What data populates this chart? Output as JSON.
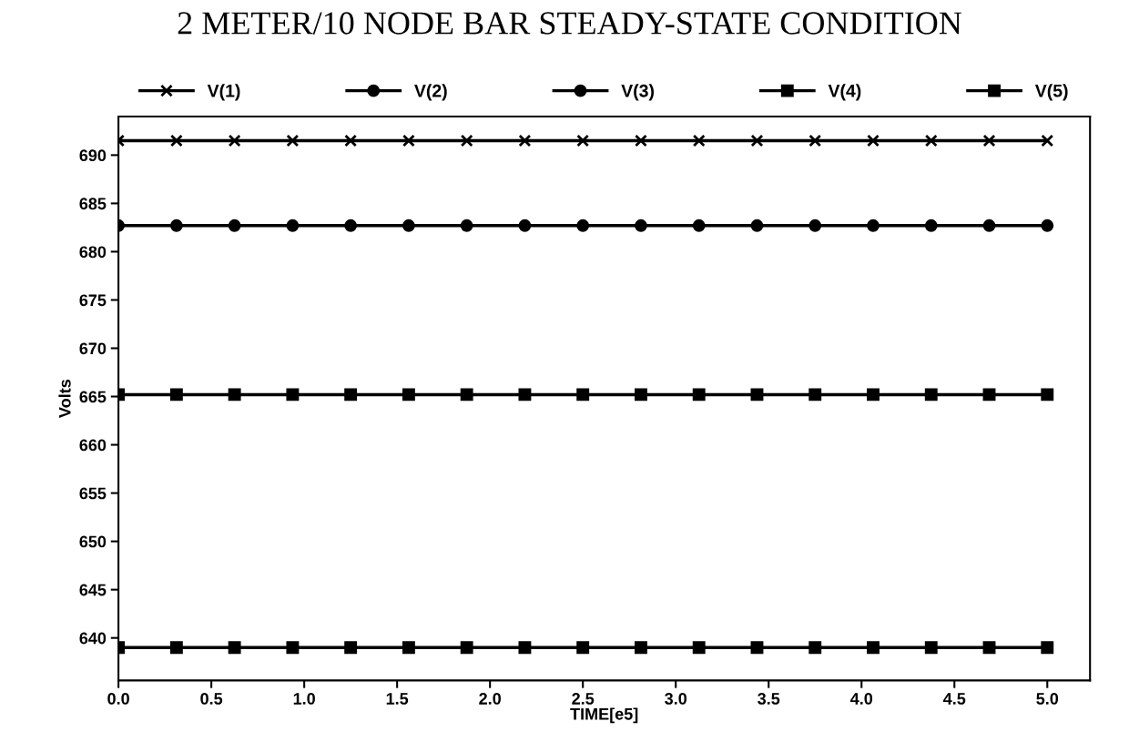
{
  "chart_data": {
    "type": "line",
    "title": "2 METER/10 NODE BAR STEADY-STATE CONDITION",
    "xlabel": "TIME[e5]",
    "ylabel": "Volts",
    "x": [
      0,
      0.3125,
      0.625,
      0.9375,
      1.25,
      1.5625,
      1.875,
      2.1875,
      2.5,
      2.8125,
      3.125,
      3.4375,
      3.75,
      4.0625,
      4.375,
      4.6875,
      5.0
    ],
    "series": [
      {
        "name": "V(1)",
        "color": "#000000",
        "marker": "cross",
        "values": [
          691.5,
          691.5,
          691.5,
          691.5,
          691.5,
          691.5,
          691.5,
          691.5,
          691.5,
          691.5,
          691.5,
          691.5,
          691.5,
          691.5,
          691.5,
          691.5,
          691.5
        ]
      },
      {
        "name": "V(2)",
        "color": "#000000",
        "marker": "circle",
        "values": [
          null,
          null,
          null,
          null,
          null,
          null,
          null,
          null,
          null,
          null,
          null,
          null,
          null,
          null,
          null,
          null,
          null
        ]
      },
      {
        "name": "V(3)",
        "color": "#000000",
        "marker": "circle",
        "values": [
          682.7,
          682.7,
          682.7,
          682.7,
          682.7,
          682.7,
          682.7,
          682.7,
          682.7,
          682.7,
          682.7,
          682.7,
          682.7,
          682.7,
          682.7,
          682.7,
          682.7
        ]
      },
      {
        "name": "V(4)",
        "color": "#000000",
        "marker": "square",
        "values": [
          665.2,
          665.2,
          665.2,
          665.2,
          665.2,
          665.2,
          665.2,
          665.2,
          665.2,
          665.2,
          665.2,
          665.2,
          665.2,
          665.2,
          665.2,
          665.2,
          665.2
        ]
      },
      {
        "name": "V(5)",
        "color": "#000000",
        "marker": "square",
        "values": [
          639.0,
          639.0,
          639.0,
          639.0,
          639.0,
          639.0,
          639.0,
          639.0,
          639.0,
          639.0,
          639.0,
          639.0,
          639.0,
          639.0,
          639.0,
          639.0,
          639.0
        ]
      }
    ],
    "xlim": [
      0,
      5.23
    ],
    "xticks": [
      {
        "value": 0,
        "label": "0.0"
      },
      0.5,
      {
        "value": 1,
        "label": "1.0"
      },
      1.5,
      {
        "value": 2,
        "label": "2.0"
      },
      2.5,
      {
        "value": 3,
        "label": "3.0"
      },
      3.5,
      {
        "value": 4,
        "label": "4.0"
      },
      4.5,
      {
        "value": 5,
        "label": "5.0"
      }
    ],
    "ylim": [
      635.6,
      694
    ],
    "yticks": [
      640,
      645,
      650,
      655,
      660,
      665,
      670,
      675,
      680,
      685,
      690
    ],
    "grid": false,
    "legend": "top",
    "line_style": "solid"
  }
}
